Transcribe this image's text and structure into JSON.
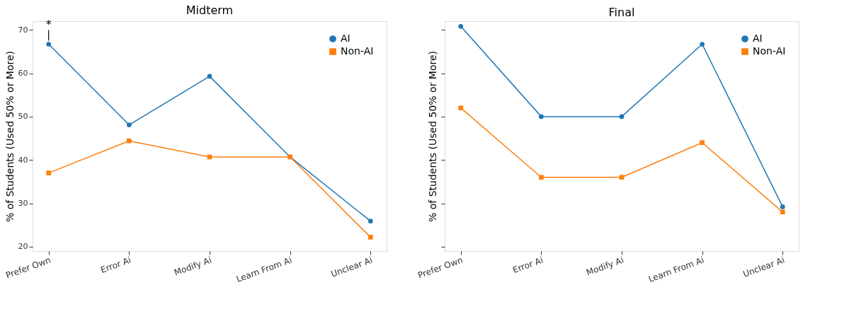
{
  "chart_data": [
    {
      "type": "line",
      "title": "Midterm",
      "ylabel": "% of Students (Used 50% or More)",
      "categories": [
        "Prefer Own",
        "Error Ai",
        "Modify Ai",
        "Learn From Ai",
        "Unclear Ai"
      ],
      "ylim": [
        19,
        72
      ],
      "yticks": [
        20,
        30,
        40,
        50,
        60,
        70
      ],
      "legend": "top right",
      "grid": false,
      "annotations": [
        "*"
      ],
      "series": [
        {
          "name": "AI",
          "color": "#1f77b4",
          "marker": "circle",
          "values": [
            66.7,
            48.1,
            59.3,
            40.7,
            25.9
          ]
        },
        {
          "name": "Non-AI",
          "color": "#ff7f0e",
          "marker": "square",
          "values": [
            37.0,
            44.4,
            40.7,
            40.7,
            22.2
          ]
        }
      ]
    },
    {
      "type": "line",
      "title": "Final",
      "ylabel": "% of Students (Used 50% or More)",
      "categories": [
        "Prefer Own",
        "Error Ai",
        "Modify Ai",
        "Learn From Ai",
        "Unclear Ai"
      ],
      "ylim": [
        19,
        72
      ],
      "yticks": [
        20,
        30,
        40,
        50,
        60,
        70
      ],
      "tick_labels": "x",
      "legend": "top right",
      "grid": false,
      "series": [
        {
          "name": "AI",
          "color": "#1f77b4",
          "marker": "circle",
          "values": [
            70.8,
            50.0,
            50.0,
            66.7,
            29.2
          ]
        },
        {
          "name": "Non-AI",
          "color": "#ff7f0e",
          "marker": "square",
          "values": [
            52.0,
            36.0,
            36.0,
            44.0,
            28.0
          ]
        }
      ]
    }
  ]
}
